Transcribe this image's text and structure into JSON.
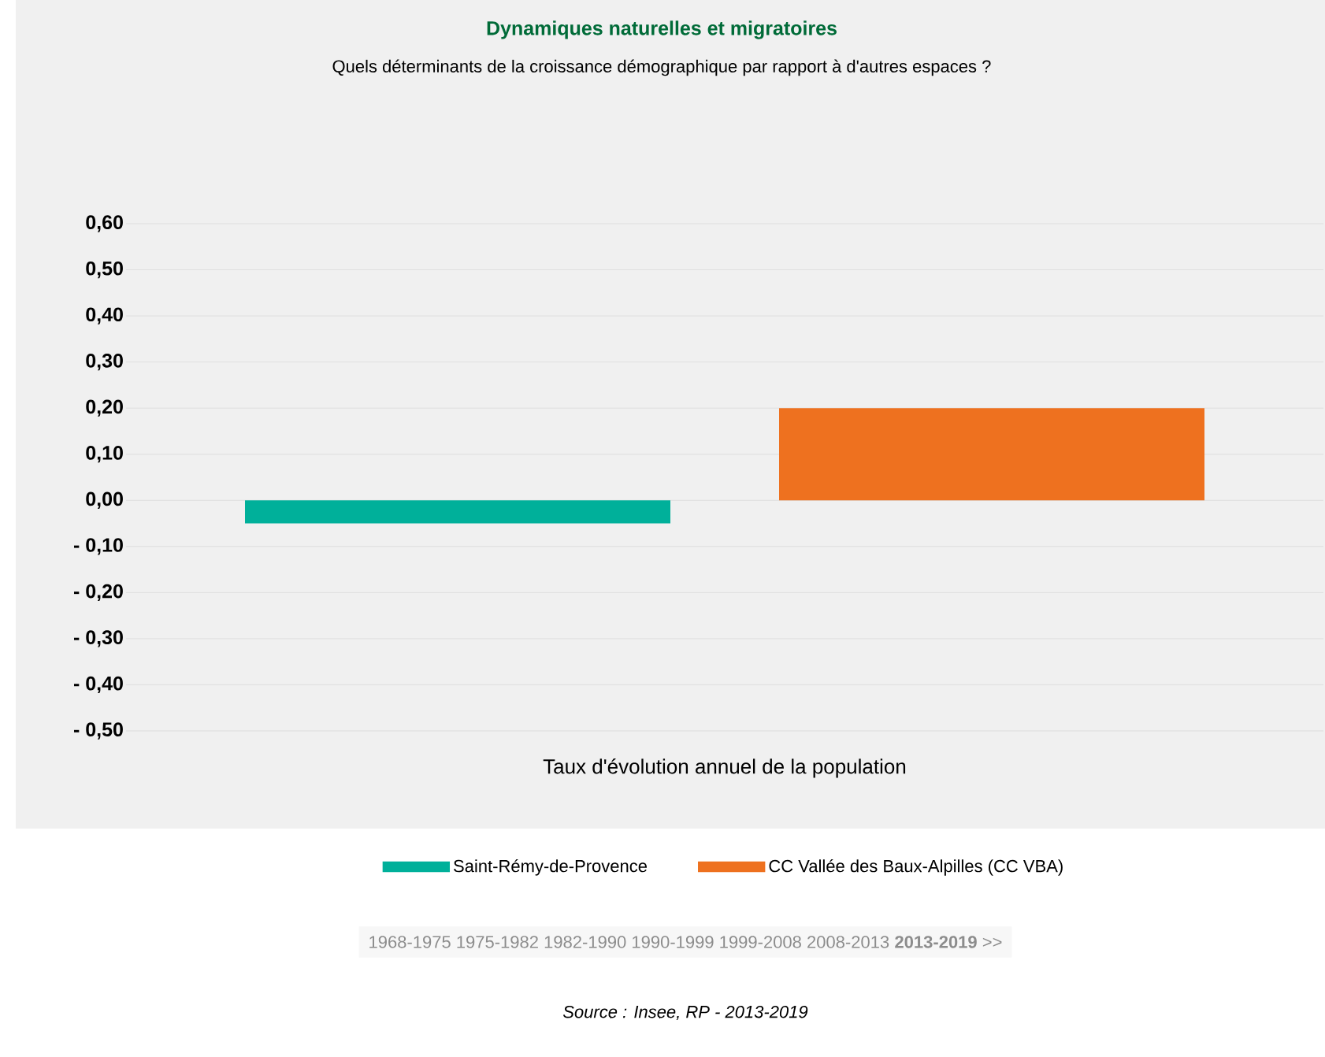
{
  "chart_data": {
    "type": "bar",
    "title": "Dynamiques naturelles et migratoires",
    "subtitle": "Quels déterminants de la croissance démographique par rapport à d'autres espaces ?",
    "categories": [
      "Taux d'évolution annuel de la population"
    ],
    "series": [
      {
        "name": "Saint-Rémy-de-Provence",
        "color": "#00b09a",
        "values": [
          -0.05
        ]
      },
      {
        "name": "CC Vallée des Baux-Alpilles (CC VBA)",
        "color": "#ee711f",
        "values": [
          0.2
        ]
      }
    ],
    "ylim": [
      -0.5,
      0.6
    ],
    "yticks": [
      {
        "value": 0.6,
        "label": "0,60"
      },
      {
        "value": 0.5,
        "label": "0,50"
      },
      {
        "value": 0.4,
        "label": "0,40"
      },
      {
        "value": 0.3,
        "label": "0,30"
      },
      {
        "value": 0.2,
        "label": "0,20"
      },
      {
        "value": 0.1,
        "label": "0,10"
      },
      {
        "value": 0.0,
        "label": "0,00"
      },
      {
        "value": -0.1,
        "label": "- 0,10"
      },
      {
        "value": -0.2,
        "label": "- 0,20"
      },
      {
        "value": -0.3,
        "label": "- 0,30"
      },
      {
        "value": -0.4,
        "label": "- 0,40"
      },
      {
        "value": -0.5,
        "label": "- 0,50"
      }
    ],
    "grid": "y",
    "legend": "bottom",
    "annotations": [
      "1968-1975   1975-1982   1982-1990   1990-1999   1999-2008   2008-2013   **2013-2019**   >>",
      "*Source : Insee, RP - 2013-2019*"
    ]
  }
}
